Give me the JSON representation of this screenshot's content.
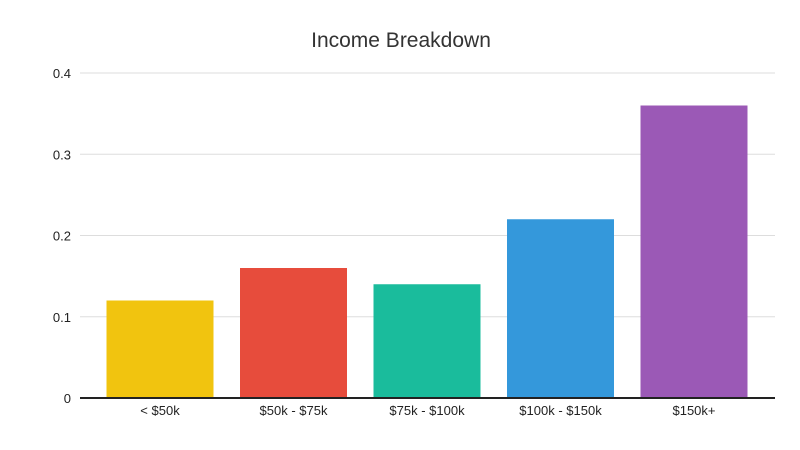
{
  "chart_data": {
    "type": "bar",
    "title": "Income Breakdown",
    "xlabel": "",
    "ylabel": "",
    "categories": [
      "< $50k",
      "$50k - $75k",
      "$75k - $100k",
      "$100k - $150k",
      "$150k+"
    ],
    "values": [
      0.12,
      0.16,
      0.14,
      0.22,
      0.36
    ],
    "colors": [
      "#f1c40f",
      "#e74c3c",
      "#1abc9c",
      "#3498db",
      "#9b59b6"
    ],
    "ylim": [
      0,
      0.4
    ],
    "y_ticks": [
      {
        "value": 0,
        "label": "0"
      },
      {
        "value": 0.1,
        "label": "0.1"
      },
      {
        "value": 0.2,
        "label": "0.2"
      },
      {
        "value": 0.3,
        "label": "0.3"
      },
      {
        "value": 0.4,
        "label": "0.4"
      }
    ],
    "grid": true,
    "legend": "none"
  }
}
